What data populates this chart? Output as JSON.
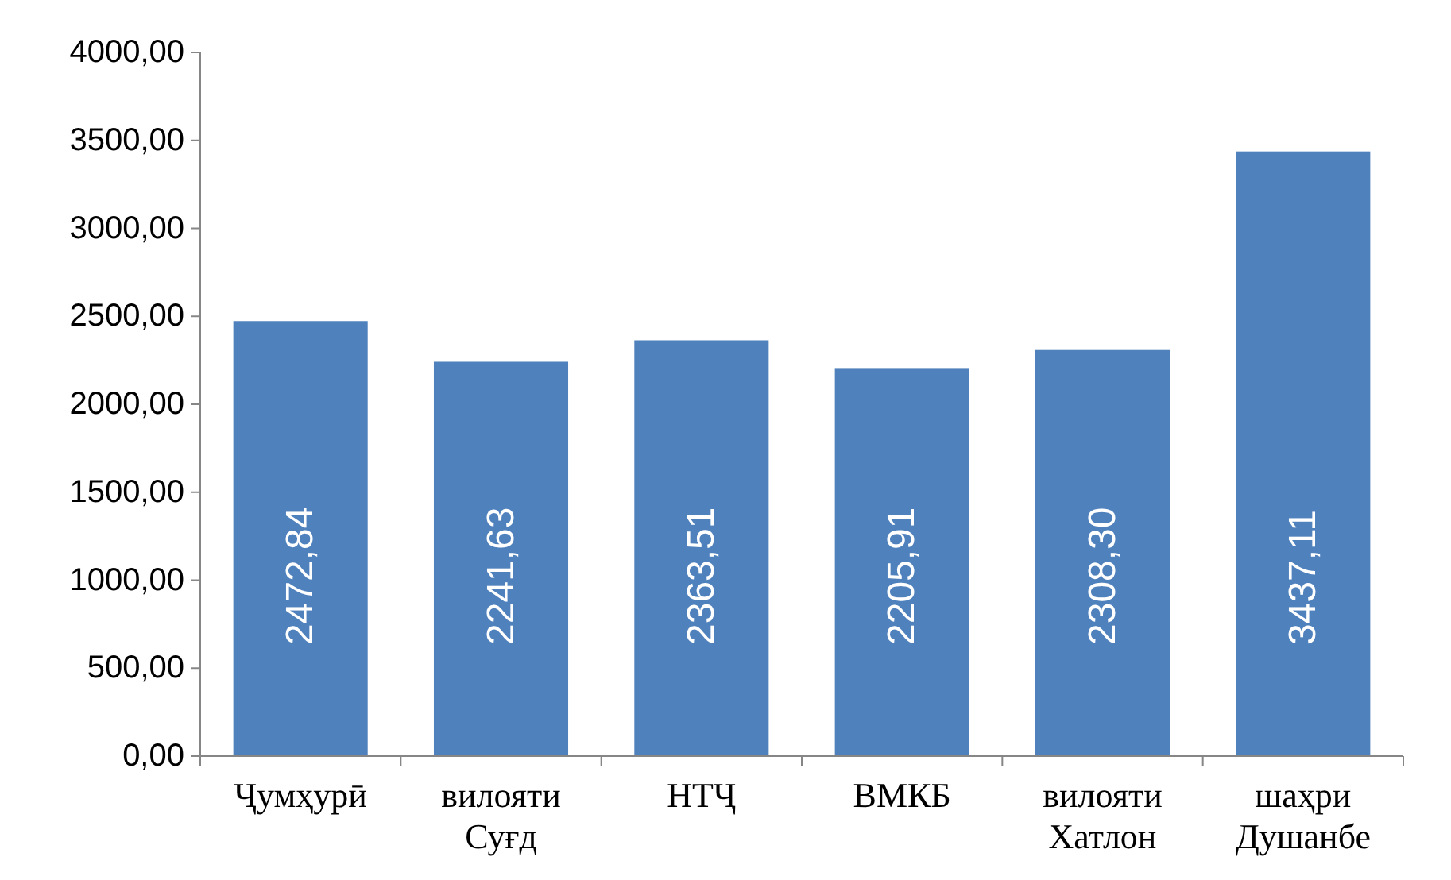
{
  "chart_data": {
    "type": "bar",
    "categories": [
      "Ҷумҳурӣ",
      "вилояти Суғд",
      "НТҶ",
      "ВМКБ",
      "вилояти Хатлон",
      "шаҳри Душанбе"
    ],
    "values": [
      2472.84,
      2241.63,
      2363.51,
      2205.91,
      2308.3,
      3437.11
    ],
    "value_labels": [
      "2472,84",
      "2241,63",
      "2363,51",
      "2205,91",
      "2308,30",
      "3437,11"
    ],
    "color": "#4f81bd",
    "ylim": [
      0,
      4000
    ],
    "yticks": [
      {
        "value": 0,
        "label": "0,00"
      },
      {
        "value": 500,
        "label": "500,00"
      },
      {
        "value": 1000,
        "label": "1000,00"
      },
      {
        "value": 1500,
        "label": "1500,00"
      },
      {
        "value": 2000,
        "label": "2000,00"
      },
      {
        "value": 2500,
        "label": "2500,00"
      },
      {
        "value": 3000,
        "label": "3000,00"
      },
      {
        "value": 3500,
        "label": "3500,00"
      },
      {
        "value": 4000,
        "label": "4000,00"
      }
    ],
    "grid": false
  }
}
